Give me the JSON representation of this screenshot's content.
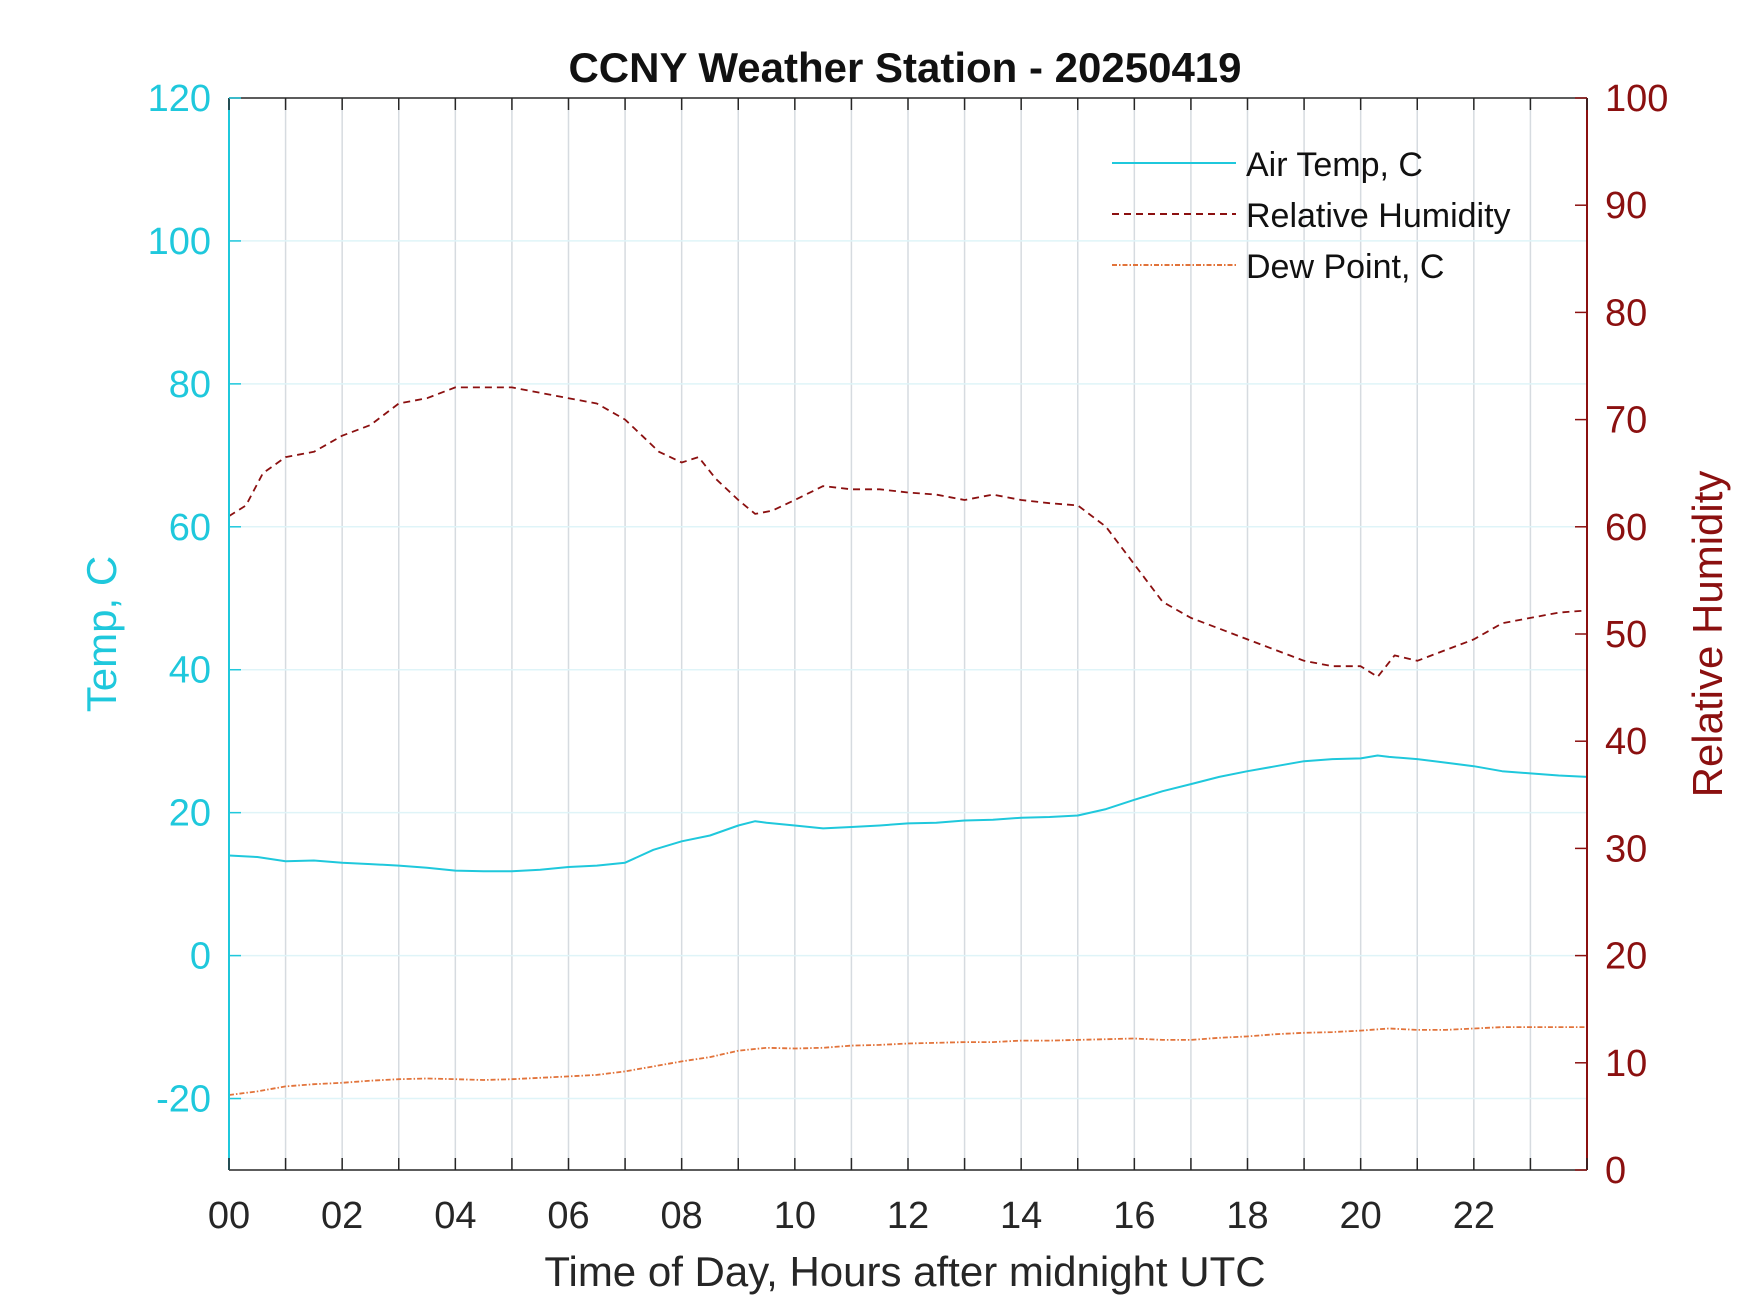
{
  "chart_data": {
    "type": "line",
    "title": "CCNY Weather Station - 20250419",
    "xlabel": "Time of Day, Hours after midnight UTC",
    "ylabel_left": "Temp, C",
    "ylabel_right": "Relative Humidity",
    "xlim": [
      0,
      24
    ],
    "ylim_left": [
      -30,
      120
    ],
    "ylim_right": [
      0,
      100
    ],
    "x_ticks": [
      0,
      2,
      4,
      6,
      8,
      10,
      12,
      14,
      16,
      18,
      20,
      22
    ],
    "x_tick_labels": [
      "00",
      "02",
      "04",
      "06",
      "08",
      "10",
      "12",
      "14",
      "16",
      "18",
      "20",
      "22"
    ],
    "y_left_ticks": [
      -20,
      0,
      20,
      40,
      60,
      80,
      100,
      120
    ],
    "y_left_tick_labels": [
      "-20",
      "0",
      "20",
      "40",
      "60",
      "80",
      "100",
      "120"
    ],
    "y_right_ticks": [
      0,
      10,
      20,
      30,
      40,
      50,
      60,
      70,
      80,
      90,
      100
    ],
    "y_right_tick_labels": [
      "0",
      "10",
      "20",
      "30",
      "40",
      "50",
      "60",
      "70",
      "80",
      "90",
      "100"
    ],
    "grid": "vertical-hourly",
    "legend_position": "top-right",
    "series": [
      {
        "name": "Air Temp, C",
        "axis": "left",
        "color": "#1fc8dc",
        "style": "solid",
        "x": [
          0,
          0.5,
          1,
          1.5,
          2,
          2.5,
          3,
          3.5,
          4,
          4.5,
          5,
          5.5,
          6,
          6.5,
          7,
          7.5,
          8,
          8.5,
          9,
          9.3,
          9.5,
          10,
          10.5,
          11,
          11.5,
          12,
          12.5,
          13,
          13.5,
          14,
          14.5,
          15,
          15.5,
          16,
          16.5,
          17,
          17.5,
          18,
          18.5,
          19,
          19.5,
          20,
          20.3,
          20.5,
          21,
          21.5,
          22,
          22.5,
          23,
          23.5,
          24
        ],
        "y": [
          14,
          13.8,
          13.2,
          13.3,
          13.0,
          12.8,
          12.6,
          12.3,
          11.9,
          11.8,
          11.8,
          12.0,
          12.4,
          12.6,
          13.0,
          14.8,
          16.0,
          16.8,
          18.2,
          18.8,
          18.6,
          18.2,
          17.8,
          18.0,
          18.2,
          18.5,
          18.6,
          18.9,
          19.0,
          19.3,
          19.4,
          19.6,
          20.5,
          21.8,
          23.0,
          24.0,
          25.0,
          25.8,
          26.5,
          27.2,
          27.5,
          27.6,
          28.0,
          27.8,
          27.5,
          27.0,
          26.5,
          25.8,
          25.5,
          25.2,
          25.0
        ]
      },
      {
        "name": "Relative Humidity",
        "axis": "right",
        "color": "#8b1010",
        "style": "dashed",
        "x": [
          0,
          0.3,
          0.6,
          1,
          1.5,
          2,
          2.5,
          3,
          3.5,
          4,
          4.5,
          5,
          5.5,
          6,
          6.5,
          7,
          7.3,
          7.6,
          8,
          8.3,
          8.6,
          9,
          9.3,
          9.6,
          10,
          10.5,
          11,
          11.5,
          12,
          12.5,
          13,
          13.5,
          14,
          14.5,
          15,
          15.5,
          16,
          16.5,
          17,
          17.5,
          18,
          18.5,
          19,
          19.5,
          20,
          20.3,
          20.6,
          21,
          21.5,
          22,
          22.5,
          23,
          23.5,
          24
        ],
        "y": [
          61,
          62,
          65,
          66.5,
          67,
          68.5,
          69.5,
          71.5,
          72,
          73,
          73,
          73,
          72.5,
          72,
          71.5,
          70,
          68.5,
          67,
          66,
          66.5,
          64.5,
          62.5,
          61.2,
          61.5,
          62.5,
          63.8,
          63.5,
          63.5,
          63.2,
          63.0,
          62.5,
          63,
          62.5,
          62.2,
          62.0,
          60.0,
          56.5,
          53.0,
          51.5,
          50.5,
          49.5,
          48.5,
          47.5,
          47.0,
          47.0,
          46.0,
          48.0,
          47.5,
          48.5,
          49.5,
          51.0,
          51.5,
          52.0,
          52.2
        ]
      },
      {
        "name": "Dew Point, C",
        "axis": "left",
        "color": "#e2733a",
        "style": "dashdot",
        "x": [
          0,
          0.5,
          1,
          1.5,
          2,
          2.5,
          3,
          3.5,
          4,
          4.5,
          5,
          5.5,
          6,
          6.5,
          7,
          7.5,
          8,
          8.5,
          9,
          9.5,
          10,
          10.5,
          11,
          11.5,
          12,
          12.5,
          13,
          13.5,
          14,
          14.5,
          15,
          15.5,
          16,
          16.5,
          17,
          17.5,
          18,
          18.5,
          19,
          19.5,
          20,
          20.5,
          21,
          21.5,
          22,
          22.5,
          23,
          23.5,
          24
        ],
        "y": [
          -19.5,
          -19.0,
          -18.3,
          -18.0,
          -17.8,
          -17.5,
          -17.3,
          -17.2,
          -17.3,
          -17.4,
          -17.3,
          -17.1,
          -16.9,
          -16.7,
          -16.2,
          -15.5,
          -14.8,
          -14.2,
          -13.3,
          -12.9,
          -13.0,
          -12.9,
          -12.6,
          -12.5,
          -12.3,
          -12.2,
          -12.1,
          -12.1,
          -11.9,
          -11.9,
          -11.8,
          -11.7,
          -11.6,
          -11.8,
          -11.8,
          -11.5,
          -11.3,
          -11.0,
          -10.8,
          -10.7,
          -10.5,
          -10.2,
          -10.4,
          -10.4,
          -10.2,
          -10.0,
          -10.0,
          -10.0,
          -10.0
        ]
      }
    ]
  }
}
